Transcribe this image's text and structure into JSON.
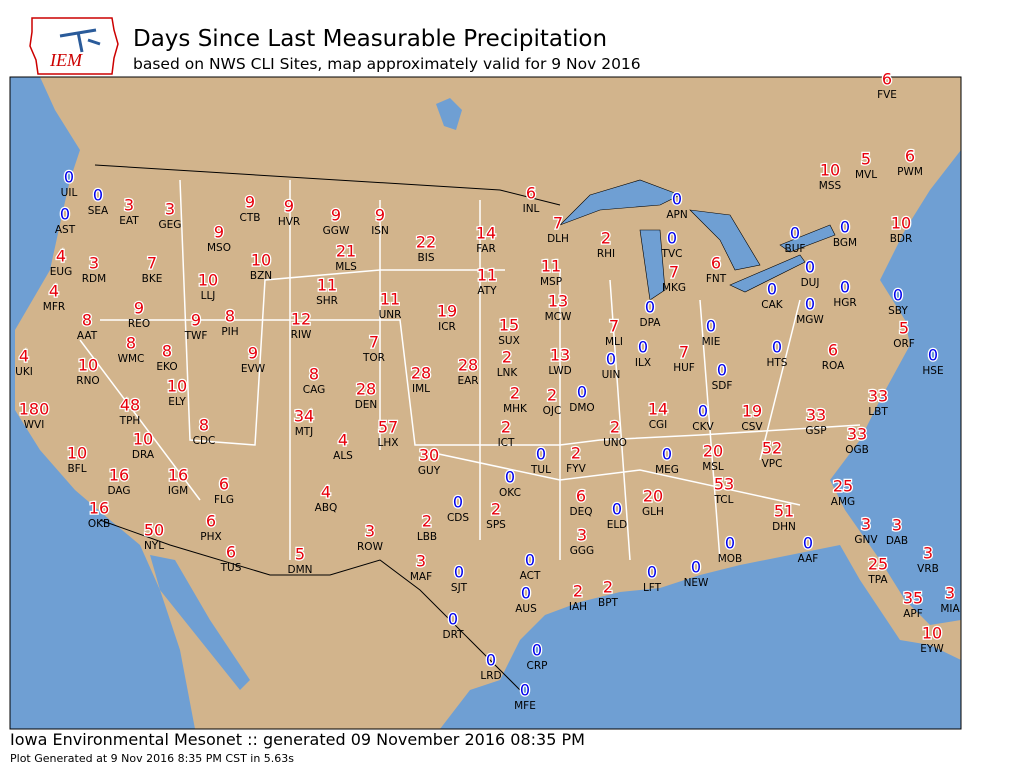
{
  "header": {
    "logo": "IEM",
    "title": "Days Since Last Measurable Precipitation",
    "subtitle": "based on NWS CLI Sites, map approximately valid for 9 Nov 2016"
  },
  "stations": [
    {
      "code": "UIL",
      "value": 0
    },
    {
      "code": "SEA",
      "value": 0
    },
    {
      "code": "AST",
      "value": 0
    },
    {
      "code": "EAT",
      "value": 3
    },
    {
      "code": "GEG",
      "value": 3
    },
    {
      "code": "CTB",
      "value": 9
    },
    {
      "code": "HVR",
      "value": 9
    },
    {
      "code": "GGW",
      "value": 9
    },
    {
      "code": "ISN",
      "value": 9
    },
    {
      "code": "INL",
      "value": 6
    },
    {
      "code": "DLH",
      "value": 7
    },
    {
      "code": "RHI",
      "value": 2
    },
    {
      "code": "APN",
      "value": 0
    },
    {
      "code": "TVC",
      "value": 0
    },
    {
      "code": "MKG",
      "value": 7
    },
    {
      "code": "FNT",
      "value": 6
    },
    {
      "code": "BUF",
      "value": 0
    },
    {
      "code": "BGM",
      "value": 0
    },
    {
      "code": "BDR",
      "value": 10
    },
    {
      "code": "MSS",
      "value": 10
    },
    {
      "code": "MVL",
      "value": 5
    },
    {
      "code": "PWM",
      "value": 6
    },
    {
      "code": "FVE",
      "value": 6
    },
    {
      "code": "MSO",
      "value": 9
    },
    {
      "code": "EUG",
      "value": 4
    },
    {
      "code": "RDM",
      "value": 3
    },
    {
      "code": "BKE",
      "value": 7
    },
    {
      "code": "BZN",
      "value": 10
    },
    {
      "code": "MLS",
      "value": 21
    },
    {
      "code": "BIS",
      "value": 22
    },
    {
      "code": "FAR",
      "value": 14
    },
    {
      "code": "LLJ",
      "value": 10
    },
    {
      "code": "SHR",
      "value": 11
    },
    {
      "code": "ATY",
      "value": 11
    },
    {
      "code": "MSP",
      "value": 11
    },
    {
      "code": "MFR",
      "value": 4
    },
    {
      "code": "REO",
      "value": 9
    },
    {
      "code": "PIH",
      "value": 8
    },
    {
      "code": "TWF",
      "value": 9
    },
    {
      "code": "RIW",
      "value": 12
    },
    {
      "code": "UNR",
      "value": 11
    },
    {
      "code": "ICR",
      "value": 19
    },
    {
      "code": "SUX",
      "value": 15
    },
    {
      "code": "MCW",
      "value": 13
    },
    {
      "code": "DPA",
      "value": 0
    },
    {
      "code": "CAK",
      "value": 0
    },
    {
      "code": "DUJ",
      "value": 0
    },
    {
      "code": "HGR",
      "value": 0
    },
    {
      "code": "MGW",
      "value": 0
    },
    {
      "code": "AAT",
      "value": 8
    },
    {
      "code": "WMC",
      "value": 8
    },
    {
      "code": "EKO",
      "value": 8
    },
    {
      "code": "EVW",
      "value": 9
    },
    {
      "code": "TOR",
      "value": 7
    },
    {
      "code": "MLI",
      "value": 7
    },
    {
      "code": "ILX",
      "value": 0
    },
    {
      "code": "MIE",
      "value": 0
    },
    {
      "code": "UKI",
      "value": 4
    },
    {
      "code": "RNO",
      "value": 10
    },
    {
      "code": "CAG",
      "value": 8
    },
    {
      "code": "IML",
      "value": 28
    },
    {
      "code": "EAR",
      "value": 28
    },
    {
      "code": "LNK",
      "value": 2
    },
    {
      "code": "LWD",
      "value": 13
    },
    {
      "code": "UIN",
      "value": 0
    },
    {
      "code": "HUF",
      "value": 7
    },
    {
      "code": "HTS",
      "value": 0
    },
    {
      "code": "ROA",
      "value": 6
    },
    {
      "code": "ORF",
      "value": 5
    },
    {
      "code": "SBY",
      "value": 0
    },
    {
      "code": "HSE",
      "value": 0
    },
    {
      "code": "SDF",
      "value": 0
    },
    {
      "code": "WVI",
      "value": 180
    },
    {
      "code": "TPH",
      "value": 48
    },
    {
      "code": "ELY",
      "value": 10
    },
    {
      "code": "DEN",
      "value": 28
    },
    {
      "code": "MHK",
      "value": 2
    },
    {
      "code": "OJC",
      "value": 2
    },
    {
      "code": "DMO",
      "value": 0
    },
    {
      "code": "LBT",
      "value": 33
    },
    {
      "code": "CDC",
      "value": 8
    },
    {
      "code": "MTJ",
      "value": 34
    },
    {
      "code": "LHX",
      "value": 57
    },
    {
      "code": "ICT",
      "value": 2
    },
    {
      "code": "UNO",
      "value": 2
    },
    {
      "code": "CGI",
      "value": 14
    },
    {
      "code": "CKV",
      "value": 0
    },
    {
      "code": "CSV",
      "value": 19
    },
    {
      "code": "GSP",
      "value": 33
    },
    {
      "code": "OGB",
      "value": 33
    },
    {
      "code": "BFL",
      "value": 10
    },
    {
      "code": "DRA",
      "value": 10
    },
    {
      "code": "ALS",
      "value": 4
    },
    {
      "code": "GUY",
      "value": 30
    },
    {
      "code": "TUL",
      "value": 0
    },
    {
      "code": "FYV",
      "value": 2
    },
    {
      "code": "MEG",
      "value": 0
    },
    {
      "code": "MSL",
      "value": 20
    },
    {
      "code": "VPC",
      "value": 52
    },
    {
      "code": "DAG",
      "value": 16
    },
    {
      "code": "IGM",
      "value": 16
    },
    {
      "code": "FLG",
      "value": 6
    },
    {
      "code": "ABQ",
      "value": 4
    },
    {
      "code": "OKC",
      "value": 0
    },
    {
      "code": "DEQ",
      "value": 6
    },
    {
      "code": "GLH",
      "value": 20
    },
    {
      "code": "TCL",
      "value": 53
    },
    {
      "code": "AMG",
      "value": 25
    },
    {
      "code": "OKB",
      "value": 16
    },
    {
      "code": "CDS",
      "value": 0
    },
    {
      "code": "SPS",
      "value": 2
    },
    {
      "code": "ELD",
      "value": 0
    },
    {
      "code": "DHN",
      "value": 51
    },
    {
      "code": "NYL",
      "value": 50
    },
    {
      "code": "PHX",
      "value": 6
    },
    {
      "code": "LBB",
      "value": 2
    },
    {
      "code": "GNV",
      "value": 3
    },
    {
      "code": "DAB",
      "value": 3
    },
    {
      "code": "ROW",
      "value": 3
    },
    {
      "code": "GGG",
      "value": 3
    },
    {
      "code": "MOB",
      "value": 0
    },
    {
      "code": "AAF",
      "value": 0
    },
    {
      "code": "TUS",
      "value": 6
    },
    {
      "code": "DMN",
      "value": 5
    },
    {
      "code": "ACT",
      "value": 0
    },
    {
      "code": "VRB",
      "value": 3
    },
    {
      "code": "MAF",
      "value": 3
    },
    {
      "code": "SJT",
      "value": 0
    },
    {
      "code": "LFT",
      "value": 0
    },
    {
      "code": "NEW",
      "value": 0
    },
    {
      "code": "TPA",
      "value": 25
    },
    {
      "code": "IAH",
      "value": 2
    },
    {
      "code": "BPT",
      "value": 2
    },
    {
      "code": "AUS",
      "value": 0
    },
    {
      "code": "APF",
      "value": 35
    },
    {
      "code": "MIA",
      "value": 3
    },
    {
      "code": "DRT",
      "value": 0
    },
    {
      "code": "EYW",
      "value": 10
    },
    {
      "code": "LRD",
      "value": 0
    },
    {
      "code": "CRP",
      "value": 0
    },
    {
      "code": "MFE",
      "value": 0
    }
  ],
  "footer": {
    "credit": "Iowa Environmental Mesonet :: generated 09 November 2016 08:35 PM",
    "note": "Plot Generated at 9 Nov 2016 8:35 PM CST in 5.63s"
  }
}
